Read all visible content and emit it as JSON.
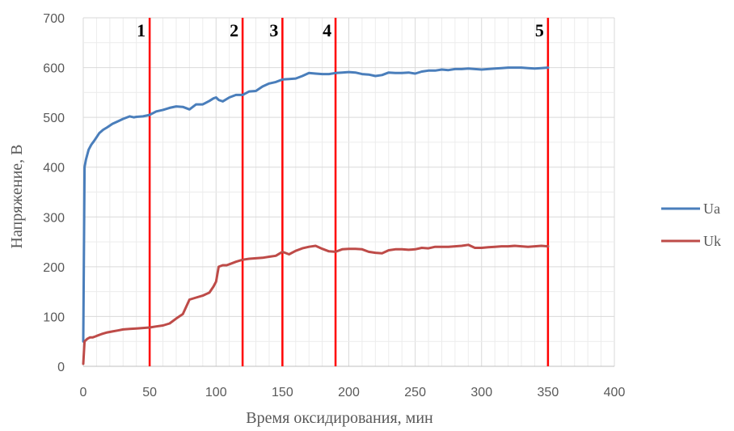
{
  "chart_data": {
    "type": "line",
    "title": "",
    "xlabel": "Время оксидирования, мин",
    "ylabel": "Напряжение, В",
    "xlim": [
      0,
      400
    ],
    "ylim": [
      0,
      700
    ],
    "x_ticks": [
      0,
      50,
      100,
      150,
      200,
      250,
      300,
      350,
      400
    ],
    "y_ticks": [
      0,
      100,
      200,
      300,
      400,
      500,
      600,
      700
    ],
    "grid": true,
    "legend_position": "right",
    "series": [
      {
        "name": "Ua",
        "color": "#4a7ebb",
        "x": [
          0,
          1,
          2,
          4,
          6,
          8,
          10,
          12,
          15,
          18,
          22,
          26,
          30,
          35,
          38,
          40,
          45,
          50,
          55,
          60,
          65,
          70,
          75,
          80,
          85,
          90,
          95,
          98,
          100,
          102,
          105,
          110,
          115,
          120,
          125,
          130,
          135,
          140,
          145,
          150,
          155,
          160,
          165,
          170,
          175,
          180,
          185,
          190,
          195,
          200,
          205,
          210,
          215,
          220,
          225,
          230,
          235,
          240,
          245,
          250,
          255,
          260,
          265,
          270,
          275,
          280,
          285,
          290,
          295,
          300,
          305,
          310,
          315,
          320,
          325,
          330,
          335,
          340,
          345,
          350
        ],
        "values": [
          50,
          400,
          415,
          435,
          445,
          452,
          460,
          468,
          475,
          480,
          487,
          492,
          497,
          502,
          500,
          501,
          502,
          505,
          512,
          515,
          519,
          522,
          521,
          516,
          526,
          526,
          533,
          538,
          540,
          535,
          532,
          540,
          545,
          545,
          552,
          553,
          562,
          568,
          571,
          576,
          577,
          578,
          583,
          589,
          588,
          587,
          587,
          589,
          590,
          591,
          590,
          587,
          586,
          583,
          585,
          590,
          589,
          589,
          590,
          588,
          592,
          594,
          594,
          596,
          595,
          597,
          597,
          598,
          597,
          596,
          597,
          598,
          599,
          600,
          600,
          600,
          599,
          598,
          599,
          600
        ]
      },
      {
        "name": "Uk",
        "color": "#be4b48",
        "x": [
          0,
          1,
          3,
          5,
          7,
          9,
          11,
          14,
          18,
          22,
          26,
          30,
          35,
          40,
          45,
          50,
          55,
          60,
          65,
          70,
          75,
          80,
          85,
          90,
          95,
          98,
          100,
          102,
          105,
          108,
          110,
          115,
          120,
          125,
          130,
          135,
          140,
          145,
          150,
          155,
          160,
          165,
          170,
          175,
          180,
          185,
          190,
          195,
          200,
          205,
          210,
          215,
          220,
          225,
          230,
          235,
          240,
          245,
          250,
          255,
          260,
          265,
          270,
          275,
          280,
          285,
          290,
          295,
          300,
          305,
          310,
          315,
          320,
          325,
          330,
          335,
          340,
          345,
          350
        ],
        "values": [
          5,
          50,
          55,
          58,
          58,
          60,
          62,
          65,
          68,
          70,
          72,
          74,
          75,
          76,
          77,
          78,
          80,
          82,
          86,
          96,
          105,
          134,
          138,
          142,
          148,
          160,
          170,
          200,
          203,
          203,
          205,
          210,
          214,
          216,
          217,
          218,
          220,
          222,
          230,
          225,
          232,
          237,
          240,
          242,
          236,
          231,
          230,
          235,
          236,
          236,
          235,
          230,
          228,
          227,
          233,
          235,
          235,
          234,
          235,
          238,
          237,
          240,
          240,
          240,
          241,
          242,
          244,
          238,
          238,
          239,
          240,
          241,
          241,
          242,
          241,
          240,
          241,
          242,
          241
        ]
      }
    ],
    "vertical_markers": [
      {
        "label": "1",
        "x": 50,
        "color": "#ff0000"
      },
      {
        "label": "2",
        "x": 120,
        "color": "#ff0000"
      },
      {
        "label": "3",
        "x": 150,
        "color": "#ff0000"
      },
      {
        "label": "4",
        "x": 190,
        "color": "#ff0000"
      },
      {
        "label": "5",
        "x": 350,
        "color": "#ff0000"
      }
    ]
  }
}
